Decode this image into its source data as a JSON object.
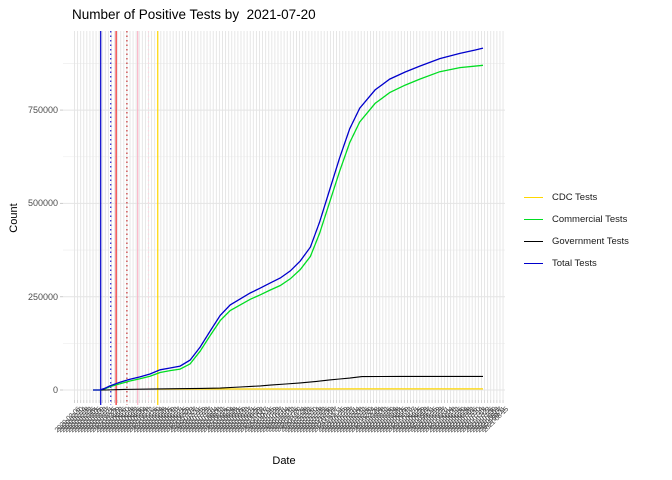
{
  "chart_data": {
    "type": "line",
    "title": "Number of Positive Tests by  2021-07-20",
    "xlabel": "Date",
    "ylabel": "Count",
    "x_axis": {
      "start_date": "2020-03-01",
      "end_date": "2021-07-20",
      "span_days": 506,
      "tick_step_days": 4,
      "tick_label_angle_deg": 45,
      "tick_label_format": "YYYY-MM-DD"
    },
    "y_axis": {
      "ticks": [
        0,
        250000,
        500000,
        750000
      ],
      "tick_labels": [
        "0",
        "250000",
        "500000",
        "750000"
      ],
      "minor_ticks": [
        125000,
        375000,
        625000,
        875000
      ],
      "range": [
        -45000,
        963000
      ]
    },
    "grid": true,
    "legend_position": "right",
    "series": [
      {
        "name": "CDC Tests",
        "color": "#FFD700",
        "points": [
          [
            84,
            2500
          ],
          [
            150,
            2700
          ],
          [
            250,
            2800
          ],
          [
            350,
            2900
          ],
          [
            450,
            2900
          ],
          [
            506,
            2900
          ]
        ]
      },
      {
        "name": "Commercial Tests",
        "color": "#00DD22",
        "points": [
          [
            0,
            0
          ],
          [
            12,
            0
          ],
          [
            22,
            9000
          ],
          [
            35,
            17000
          ],
          [
            48,
            24000
          ],
          [
            61,
            30000
          ],
          [
            74,
            37000
          ],
          [
            87,
            47000
          ],
          [
            100,
            52000
          ],
          [
            113,
            56000
          ],
          [
            126,
            70000
          ],
          [
            139,
            104000
          ],
          [
            152,
            146000
          ],
          [
            165,
            186000
          ],
          [
            178,
            213000
          ],
          [
            191,
            228000
          ],
          [
            204,
            243000
          ],
          [
            217,
            255000
          ],
          [
            230,
            268000
          ],
          [
            243,
            280000
          ],
          [
            256,
            298000
          ],
          [
            269,
            323000
          ],
          [
            282,
            358000
          ],
          [
            294,
            420000
          ],
          [
            307,
            503000
          ],
          [
            320,
            586000
          ],
          [
            333,
            663000
          ],
          [
            346,
            718000
          ],
          [
            366,
            768000
          ],
          [
            385,
            797000
          ],
          [
            405,
            817000
          ],
          [
            424,
            833000
          ],
          [
            450,
            853000
          ],
          [
            476,
            864000
          ],
          [
            506,
            870000
          ]
        ]
      },
      {
        "name": "Government Tests",
        "color": "#000000",
        "points": [
          [
            0,
            0
          ],
          [
            16,
            0
          ],
          [
            40,
            1500
          ],
          [
            74,
            2500
          ],
          [
            110,
            3500
          ],
          [
            140,
            4200
          ],
          [
            165,
            5000
          ],
          [
            191,
            8000
          ],
          [
            217,
            11000
          ],
          [
            230,
            13000
          ],
          [
            250,
            16000
          ],
          [
            269,
            19000
          ],
          [
            290,
            23000
          ],
          [
            307,
            27000
          ],
          [
            320,
            29500
          ],
          [
            333,
            32000
          ],
          [
            349,
            36000
          ],
          [
            398,
            36500
          ],
          [
            450,
            36500
          ],
          [
            506,
            36500
          ]
        ]
      },
      {
        "name": "Total Tests",
        "color": "#0000CC",
        "points": [
          [
            0,
            0
          ],
          [
            9,
            0
          ],
          [
            16,
            5000
          ],
          [
            22,
            11000
          ],
          [
            35,
            21000
          ],
          [
            48,
            29000
          ],
          [
            61,
            35000
          ],
          [
            74,
            43000
          ],
          [
            87,
            54000
          ],
          [
            100,
            59000
          ],
          [
            113,
            64000
          ],
          [
            126,
            80000
          ],
          [
            139,
            115000
          ],
          [
            152,
            158000
          ],
          [
            165,
            200000
          ],
          [
            178,
            228000
          ],
          [
            191,
            244000
          ],
          [
            204,
            260000
          ],
          [
            217,
            273000
          ],
          [
            230,
            287000
          ],
          [
            243,
            300000
          ],
          [
            256,
            319000
          ],
          [
            269,
            346000
          ],
          [
            282,
            383000
          ],
          [
            294,
            450000
          ],
          [
            307,
            536000
          ],
          [
            320,
            622000
          ],
          [
            333,
            700000
          ],
          [
            346,
            755000
          ],
          [
            366,
            804000
          ],
          [
            385,
            833000
          ],
          [
            405,
            852000
          ],
          [
            424,
            868000
          ],
          [
            450,
            888000
          ],
          [
            476,
            902000
          ],
          [
            496,
            911000
          ],
          [
            506,
            916000
          ]
        ]
      }
    ],
    "vlines": [
      {
        "day": 10,
        "color": "#0000CC",
        "style": "solid"
      },
      {
        "day": 23,
        "color": "#2222CC",
        "style": "dotted"
      },
      {
        "day": 30,
        "color": "#EE2222",
        "style": "solid"
      },
      {
        "day": 44,
        "color": "#C03030",
        "style": "dotted"
      },
      {
        "day": 58,
        "color": "#F9B4C6",
        "style": "solid"
      },
      {
        "day": 72,
        "color": "#FBD6E0",
        "style": "dotted"
      },
      {
        "day": 84,
        "color": "#FFD700",
        "style": "solid"
      }
    ]
  },
  "colors": {
    "background": "#FFFFFF",
    "gridline_major": "#E4E4E4",
    "gridline_minor": "#F1F1F1",
    "axis_tick": "#CBCBCB",
    "axis_text": "#4D4D4D",
    "title_text": "#000000"
  }
}
